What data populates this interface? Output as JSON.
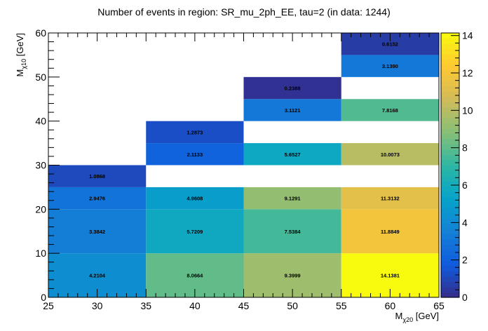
{
  "chart_data": {
    "type": "heatmap",
    "title": "Number of events in region: SR_mu_2ph_EE, tau=2 (in data: 1244)",
    "xlabel": "M",
    "xlabel_sub": "χ20",
    "xlabel_unit": " [GeV]",
    "ylabel": "M",
    "ylabel_sub": "χ10",
    "ylabel_unit": " [GeV]",
    "xlim": [
      25,
      65
    ],
    "ylim": [
      0,
      60
    ],
    "x_ticks": [
      "25",
      "30",
      "35",
      "40",
      "45",
      "50",
      "55",
      "60",
      "65"
    ],
    "y_ticks": [
      "0",
      "10",
      "20",
      "30",
      "40",
      "50",
      "60"
    ],
    "z_range": [
      0,
      14.1381
    ],
    "colorbar_ticks": [
      "0",
      "2",
      "4",
      "6",
      "8",
      "10",
      "12",
      "14"
    ],
    "grid": false,
    "cells": [
      {
        "x": [
          25,
          35
        ],
        "y": [
          0,
          10
        ],
        "value": 4.2104,
        "label": "4.2104"
      },
      {
        "x": [
          25,
          35
        ],
        "y": [
          10,
          20
        ],
        "value": 3.3842,
        "label": "3.3842"
      },
      {
        "x": [
          25,
          35
        ],
        "y": [
          20,
          25
        ],
        "value": 2.9476,
        "label": "2.9476"
      },
      {
        "x": [
          25,
          35
        ],
        "y": [
          25,
          30
        ],
        "value": 1.0868,
        "label": "1.0868"
      },
      {
        "x": [
          35,
          45
        ],
        "y": [
          0,
          10
        ],
        "value": 8.0664,
        "label": "8.0664"
      },
      {
        "x": [
          35,
          45
        ],
        "y": [
          10,
          20
        ],
        "value": 5.7209,
        "label": "5.7209"
      },
      {
        "x": [
          35,
          45
        ],
        "y": [
          20,
          25
        ],
        "value": 4.9608,
        "label": "4.9608"
      },
      {
        "x": [
          35,
          45
        ],
        "y": [
          30,
          35
        ],
        "value": 2.1133,
        "label": "2.1133"
      },
      {
        "x": [
          35,
          45
        ],
        "y": [
          35,
          40
        ],
        "value": 1.2873,
        "label": "1.2873"
      },
      {
        "x": [
          45,
          55
        ],
        "y": [
          0,
          10
        ],
        "value": 9.3999,
        "label": "9.3999"
      },
      {
        "x": [
          45,
          55
        ],
        "y": [
          10,
          20
        ],
        "value": 7.5384,
        "label": "7.5384"
      },
      {
        "x": [
          45,
          55
        ],
        "y": [
          20,
          25
        ],
        "value": 9.1291,
        "label": "9.1291"
      },
      {
        "x": [
          45,
          55
        ],
        "y": [
          30,
          35
        ],
        "value": 5.6527,
        "label": "5.6527"
      },
      {
        "x": [
          45,
          55
        ],
        "y": [
          40,
          45
        ],
        "value": 3.1121,
        "label": "3.1121"
      },
      {
        "x": [
          45,
          55
        ],
        "y": [
          45,
          50
        ],
        "value": 0.2388,
        "label": "0.2388"
      },
      {
        "x": [
          55,
          65
        ],
        "y": [
          0,
          10
        ],
        "value": 14.1381,
        "label": "14.1381"
      },
      {
        "x": [
          55,
          65
        ],
        "y": [
          10,
          20
        ],
        "value": 11.8849,
        "label": "11.8849"
      },
      {
        "x": [
          55,
          65
        ],
        "y": [
          20,
          25
        ],
        "value": 11.3132,
        "label": "11.3132"
      },
      {
        "x": [
          55,
          65
        ],
        "y": [
          30,
          35
        ],
        "value": 10.0073,
        "label": "10.0073"
      },
      {
        "x": [
          55,
          65
        ],
        "y": [
          40,
          45
        ],
        "value": 7.8168,
        "label": "7.8168"
      },
      {
        "x": [
          55,
          65
        ],
        "y": [
          50,
          55
        ],
        "value": 3.139,
        "label": "3.1390"
      },
      {
        "x": [
          55,
          65
        ],
        "y": [
          55,
          60
        ],
        "value": 0.6152,
        "label": "0.6152"
      }
    ]
  }
}
